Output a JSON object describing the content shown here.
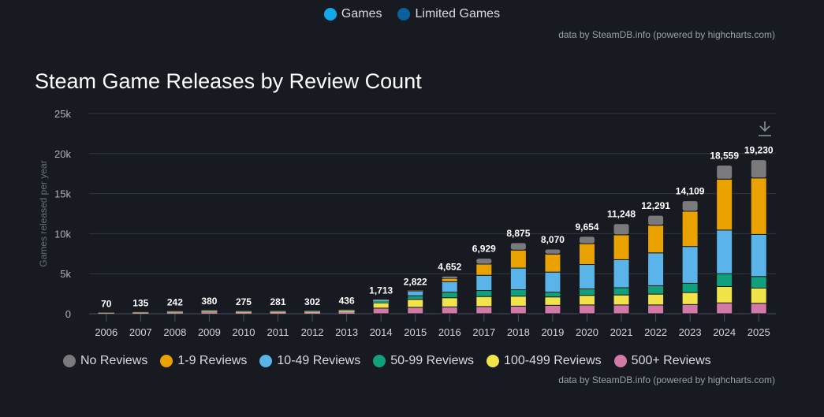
{
  "top_legend": [
    {
      "label": "Games",
      "color": "#12a9ea"
    },
    {
      "label": "Limited Games",
      "color": "#0b5f9a"
    }
  ],
  "credit": "data by SteamDB.info (powered by highcharts.com)",
  "download_icon": "download-icon",
  "chart_data": {
    "type": "bar",
    "stacked": true,
    "title": "Steam Game Releases by Review Count",
    "xlabel": "",
    "ylabel": "Games released per year",
    "ylim": [
      0,
      25000
    ],
    "yticks": [
      0,
      5000,
      10000,
      15000,
      20000,
      25000
    ],
    "ytick_labels": [
      "0",
      "5k",
      "10k",
      "15k",
      "20k",
      "25k"
    ],
    "grid": true,
    "legend_position": "bottom",
    "categories": [
      "2006",
      "2007",
      "2008",
      "2009",
      "2010",
      "2011",
      "2012",
      "2013",
      "2014",
      "2015",
      "2016",
      "2017",
      "2018",
      "2019",
      "2020",
      "2021",
      "2022",
      "2023",
      "2024",
      "2025"
    ],
    "totals": [
      70,
      135,
      242,
      380,
      275,
      281,
      302,
      436,
      1713,
      2822,
      4652,
      6929,
      8875,
      8070,
      9654,
      11248,
      12291,
      14109,
      18559,
      19230
    ],
    "total_labels": [
      "70",
      "135",
      "242",
      "380",
      "275",
      "281",
      "302",
      "436",
      "1,713",
      "2,822",
      "4,652",
      "6,929",
      "8,875",
      "8,070",
      "9,654",
      "11,248",
      "12,291",
      "14,109",
      "18,559",
      "19,230"
    ],
    "series": [
      {
        "name": "500+ Reviews",
        "color": "#d279a8",
        "values": [
          30,
          60,
          110,
          180,
          130,
          135,
          140,
          200,
          700,
          800,
          850,
          900,
          950,
          1050,
          1100,
          1100,
          1100,
          1150,
          1350,
          1300
        ]
      },
      {
        "name": "100-499 Reviews",
        "color": "#f2e34b",
        "values": [
          20,
          35,
          60,
          90,
          65,
          65,
          70,
          110,
          650,
          1000,
          1150,
          1250,
          1250,
          1050,
          1200,
          1250,
          1350,
          1500,
          2050,
          1900
        ]
      },
      {
        "name": "50-99 Reviews",
        "color": "#10a07c",
        "values": [
          8,
          15,
          25,
          40,
          30,
          30,
          35,
          50,
          200,
          450,
          700,
          750,
          800,
          600,
          800,
          900,
          1050,
          1150,
          1600,
          1450
        ]
      },
      {
        "name": "10-49 Reviews",
        "color": "#5ab4ea",
        "values": [
          8,
          15,
          30,
          45,
          35,
          35,
          40,
          50,
          130,
          550,
          1300,
          1900,
          2700,
          2500,
          3050,
          3500,
          4100,
          4600,
          5450,
          5250
        ]
      },
      {
        "name": "1-9 Reviews",
        "color": "#e9a200",
        "values": [
          2,
          5,
          10,
          15,
          10,
          10,
          10,
          15,
          20,
          10,
          400,
          1400,
          2250,
          2250,
          2600,
          3100,
          3450,
          4400,
          6350,
          7050
        ]
      },
      {
        "name": "No Reviews",
        "color": "#7a7a7c",
        "values": [
          2,
          5,
          7,
          10,
          5,
          6,
          7,
          11,
          13,
          12,
          252,
          729,
          925,
          620,
          904,
          1398,
          1241,
          1309,
          1759,
          2280
        ]
      }
    ],
    "legend_order": [
      "No Reviews",
      "1-9 Reviews",
      "10-49 Reviews",
      "50-99 Reviews",
      "100-499 Reviews",
      "500+ Reviews"
    ]
  }
}
